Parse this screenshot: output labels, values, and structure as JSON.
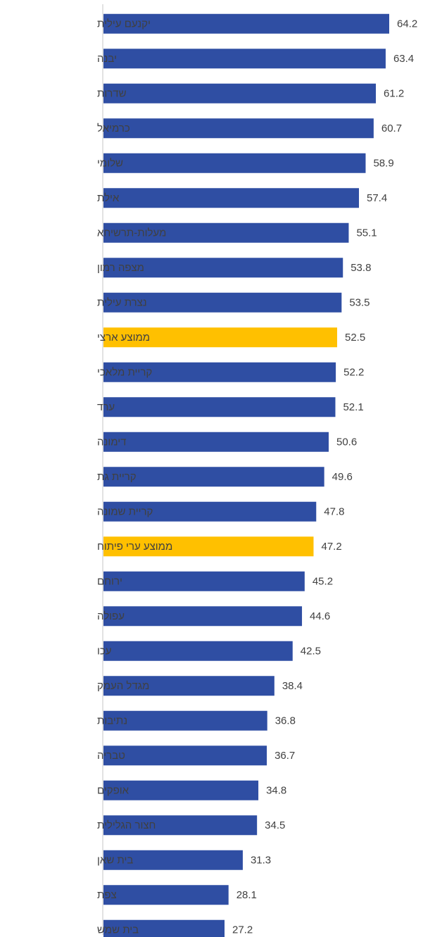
{
  "chart_data": {
    "type": "bar",
    "orientation": "horizontal",
    "categories": [
      "יקנעם עילית",
      "יבנה",
      "שדרות",
      "כרמיאל",
      "שלומי",
      "אילת",
      "מעלות-תרשיחא",
      "מצפה רמון",
      "נצרת עילית",
      "ממוצע ארצי",
      "קריית מלאכי",
      "ערד",
      "דימונה",
      "קריית גת",
      "קריית שמונה",
      "ממוצע ערי פיתוח",
      "ירוחם",
      "עפולה",
      "עכו",
      "מגדל העמק",
      "נתיבות",
      "טבריה",
      "אופקים",
      "חצור הגלילית",
      "בית שאן",
      "צפת",
      "בית שמש"
    ],
    "values": [
      64.2,
      63.4,
      61.2,
      60.7,
      58.9,
      57.4,
      55.1,
      53.8,
      53.5,
      52.5,
      52.2,
      52.1,
      50.6,
      49.6,
      47.8,
      47.2,
      45.2,
      44.6,
      42.5,
      38.4,
      36.8,
      36.7,
      34.8,
      34.5,
      31.3,
      28.1,
      27.2
    ],
    "highlighted": [
      "ממוצע ארצי",
      "ממוצע ערי פיתוח"
    ],
    "colors": {
      "bar": "#2F4EA3",
      "highlight": "#FFC000",
      "axis": "#D9D9D9",
      "label": "#404040"
    },
    "title": "",
    "xlabel": "",
    "ylabel": "",
    "xlim": [
      0,
      64.2
    ],
    "data_labels": true,
    "grid": false,
    "legend": "none"
  }
}
